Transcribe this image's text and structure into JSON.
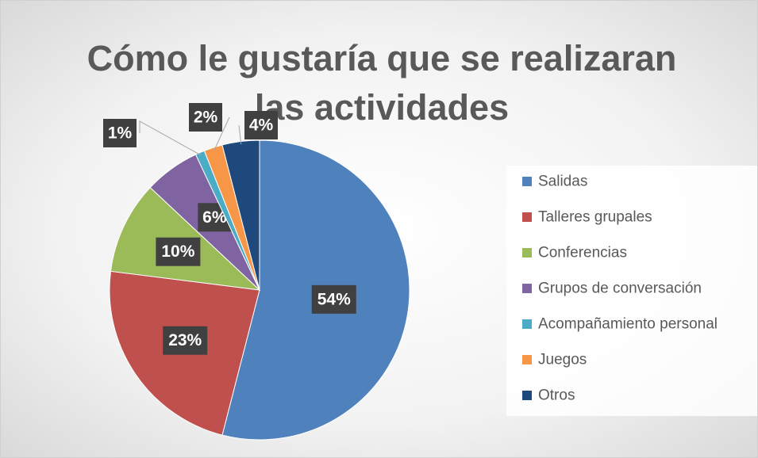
{
  "chart_data": {
    "type": "pie",
    "title": "Cómo le gustaría que se realizaran las actividades",
    "categories": [
      "Salidas",
      "Talleres grupales",
      "Conferencias",
      "Grupos de conversación",
      "Acompañamiento personal",
      "Juegos",
      "Otros"
    ],
    "values": [
      54,
      23,
      10,
      6,
      1,
      2,
      4
    ],
    "value_labels": [
      "54%",
      "23%",
      "10%",
      "6%",
      "1%",
      "2%",
      "4%"
    ],
    "colors": [
      "#4f81bd",
      "#c0504d",
      "#9bbb59",
      "#8064a2",
      "#4bacc6",
      "#f79646",
      "#1f497d"
    ],
    "legend": "right"
  }
}
